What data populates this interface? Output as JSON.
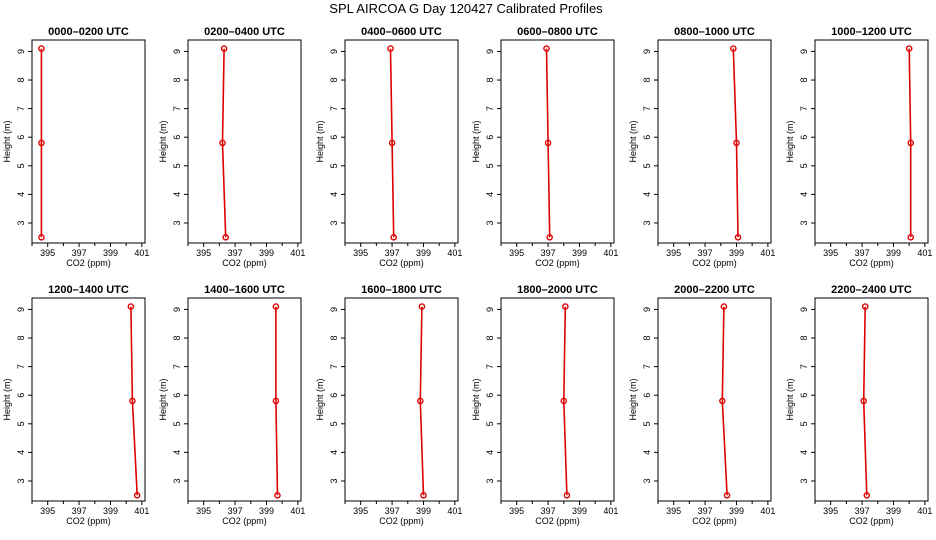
{
  "chart_data": {
    "type": "line",
    "title": "SPL AIRCOA G  Day 120427  Calibrated Profiles",
    "xlabel": "CO2 (ppm)",
    "ylabel": "Height (m)",
    "xlim": [
      394,
      401.2
    ],
    "ylim": [
      2.3,
      9.4
    ],
    "x_ticks": [
      395,
      397,
      399,
      401
    ],
    "y_ticks": [
      3,
      4,
      5,
      6,
      7,
      8,
      9
    ],
    "heights": [
      9.1,
      5.8,
      2.5
    ],
    "line_color": "#dd0000",
    "panels": [
      {
        "title": "0000–0200 UTC",
        "co2": [
          394.6,
          394.6,
          394.6
        ]
      },
      {
        "title": "0200–0400 UTC",
        "co2": [
          396.3,
          396.2,
          396.4
        ]
      },
      {
        "title": "0400–0600 UTC",
        "co2": [
          396.9,
          397.0,
          397.1
        ]
      },
      {
        "title": "0600–0800 UTC",
        "co2": [
          396.9,
          397.0,
          397.1
        ]
      },
      {
        "title": "0800–1000 UTC",
        "co2": [
          398.8,
          399.0,
          399.1
        ]
      },
      {
        "title": "1000–1200 UTC",
        "co2": [
          400.0,
          400.1,
          400.1
        ]
      },
      {
        "title": "1200–1400 UTC",
        "co2": [
          400.3,
          400.4,
          400.7
        ]
      },
      {
        "title": "1400–1600 UTC",
        "co2": [
          399.6,
          399.6,
          399.7
        ]
      },
      {
        "title": "1600–1800 UTC",
        "co2": [
          398.9,
          398.8,
          399.0
        ]
      },
      {
        "title": "1800–2000 UTC",
        "co2": [
          398.1,
          398.0,
          398.2
        ]
      },
      {
        "title": "2000–2200 UTC",
        "co2": [
          398.2,
          398.1,
          398.4
        ]
      },
      {
        "title": "2200–2400 UTC",
        "co2": [
          397.2,
          397.1,
          397.3
        ]
      }
    ]
  }
}
